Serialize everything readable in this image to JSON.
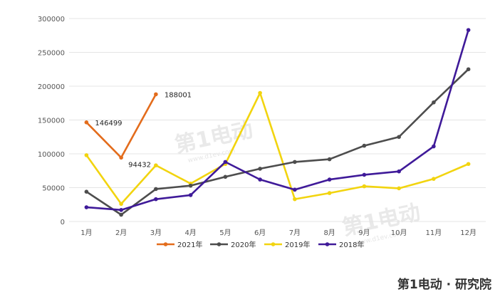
{
  "watermark": {
    "brand": "第1电动",
    "site": "www.d1ev.com"
  },
  "footer_brand": "第1电动 · 研究院",
  "chart_data": {
    "type": "line",
    "title": "",
    "xlabel": "",
    "ylabel": "",
    "categories": [
      "1月",
      "2月",
      "3月",
      "4月",
      "5月",
      "6月",
      "7月",
      "8月",
      "9月",
      "10月",
      "11月",
      "12月"
    ],
    "ylim": [
      0,
      300000
    ],
    "yticks": [
      0,
      50000,
      100000,
      150000,
      200000,
      250000,
      300000
    ],
    "ytick_labels": [
      "0",
      "50000",
      "100000",
      "150000",
      "200000",
      "250000",
      "300000"
    ],
    "grid": true,
    "legend_position": "bottom",
    "series": [
      {
        "name": "2021年",
        "color": "#e36c1c",
        "values": [
          146499,
          94432,
          188001,
          null,
          null,
          null,
          null,
          null,
          null,
          null,
          null,
          null
        ]
      },
      {
        "name": "2020年",
        "color": "#4d4d4d",
        "values": [
          44000,
          10000,
          48000,
          53000,
          66000,
          78000,
          88000,
          92000,
          112000,
          125000,
          176000,
          225000
        ]
      },
      {
        "name": "2019年",
        "color": "#f2d40f",
        "values": [
          98000,
          26000,
          83000,
          56000,
          85000,
          190000,
          33000,
          42000,
          52000,
          49000,
          63000,
          85000
        ]
      },
      {
        "name": "2018年",
        "color": "#3f1a99",
        "values": [
          21000,
          17000,
          33000,
          39000,
          88000,
          62000,
          47000,
          62000,
          69000,
          74000,
          111000,
          283000
        ]
      }
    ],
    "data_labels": [
      {
        "series": "2021年",
        "index": 0,
        "text": "146499"
      },
      {
        "series": "2021年",
        "index": 1,
        "text": "94432"
      },
      {
        "series": "2021年",
        "index": 2,
        "text": "188001"
      }
    ]
  }
}
